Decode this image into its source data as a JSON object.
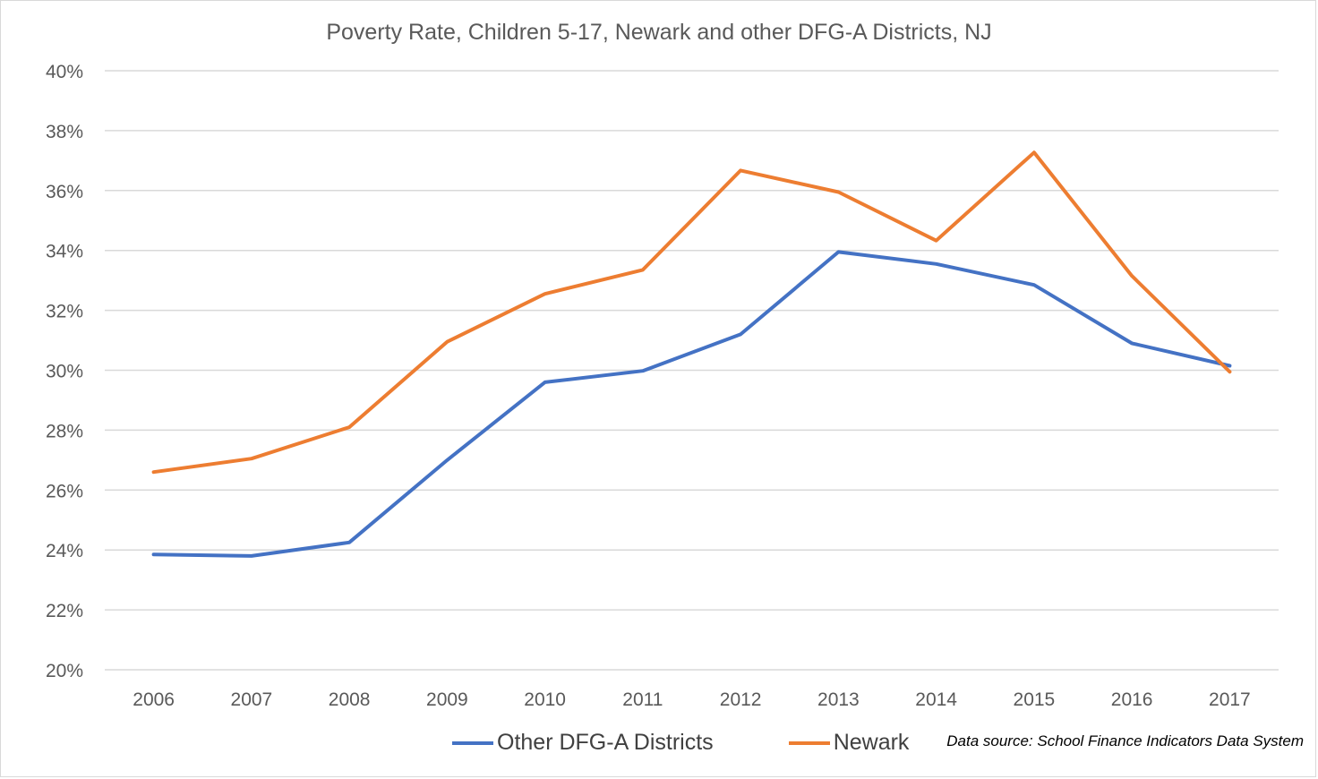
{
  "chart_data": {
    "type": "line",
    "title": "Poverty Rate, Children 5-17, Newark and other DFG-A Districts, NJ",
    "categories": [
      "2006",
      "2007",
      "2008",
      "2009",
      "2010",
      "2011",
      "2012",
      "2013",
      "2014",
      "2015",
      "2016",
      "2017"
    ],
    "ylim": [
      20,
      40
    ],
    "ytick_step": 2,
    "ytick_labels": [
      "20%",
      "22%",
      "24%",
      "26%",
      "28%",
      "30%",
      "32%",
      "34%",
      "36%",
      "38%",
      "40%"
    ],
    "grid": true,
    "legend_position": "bottom",
    "series": [
      {
        "name": "Other DFG-A Districts",
        "color": "#4472c4",
        "values": [
          23.85,
          23.8,
          24.25,
          27.0,
          29.6,
          29.98,
          31.2,
          33.95,
          33.55,
          32.85,
          30.9,
          30.15
        ]
      },
      {
        "name": "Newark",
        "color": "#ed7d31",
        "values": [
          26.6,
          27.05,
          28.1,
          30.95,
          32.55,
          33.35,
          36.67,
          35.95,
          34.33,
          37.27,
          33.15,
          29.95
        ]
      }
    ],
    "annotation": "Data source: School Finance Indicators Data System"
  }
}
